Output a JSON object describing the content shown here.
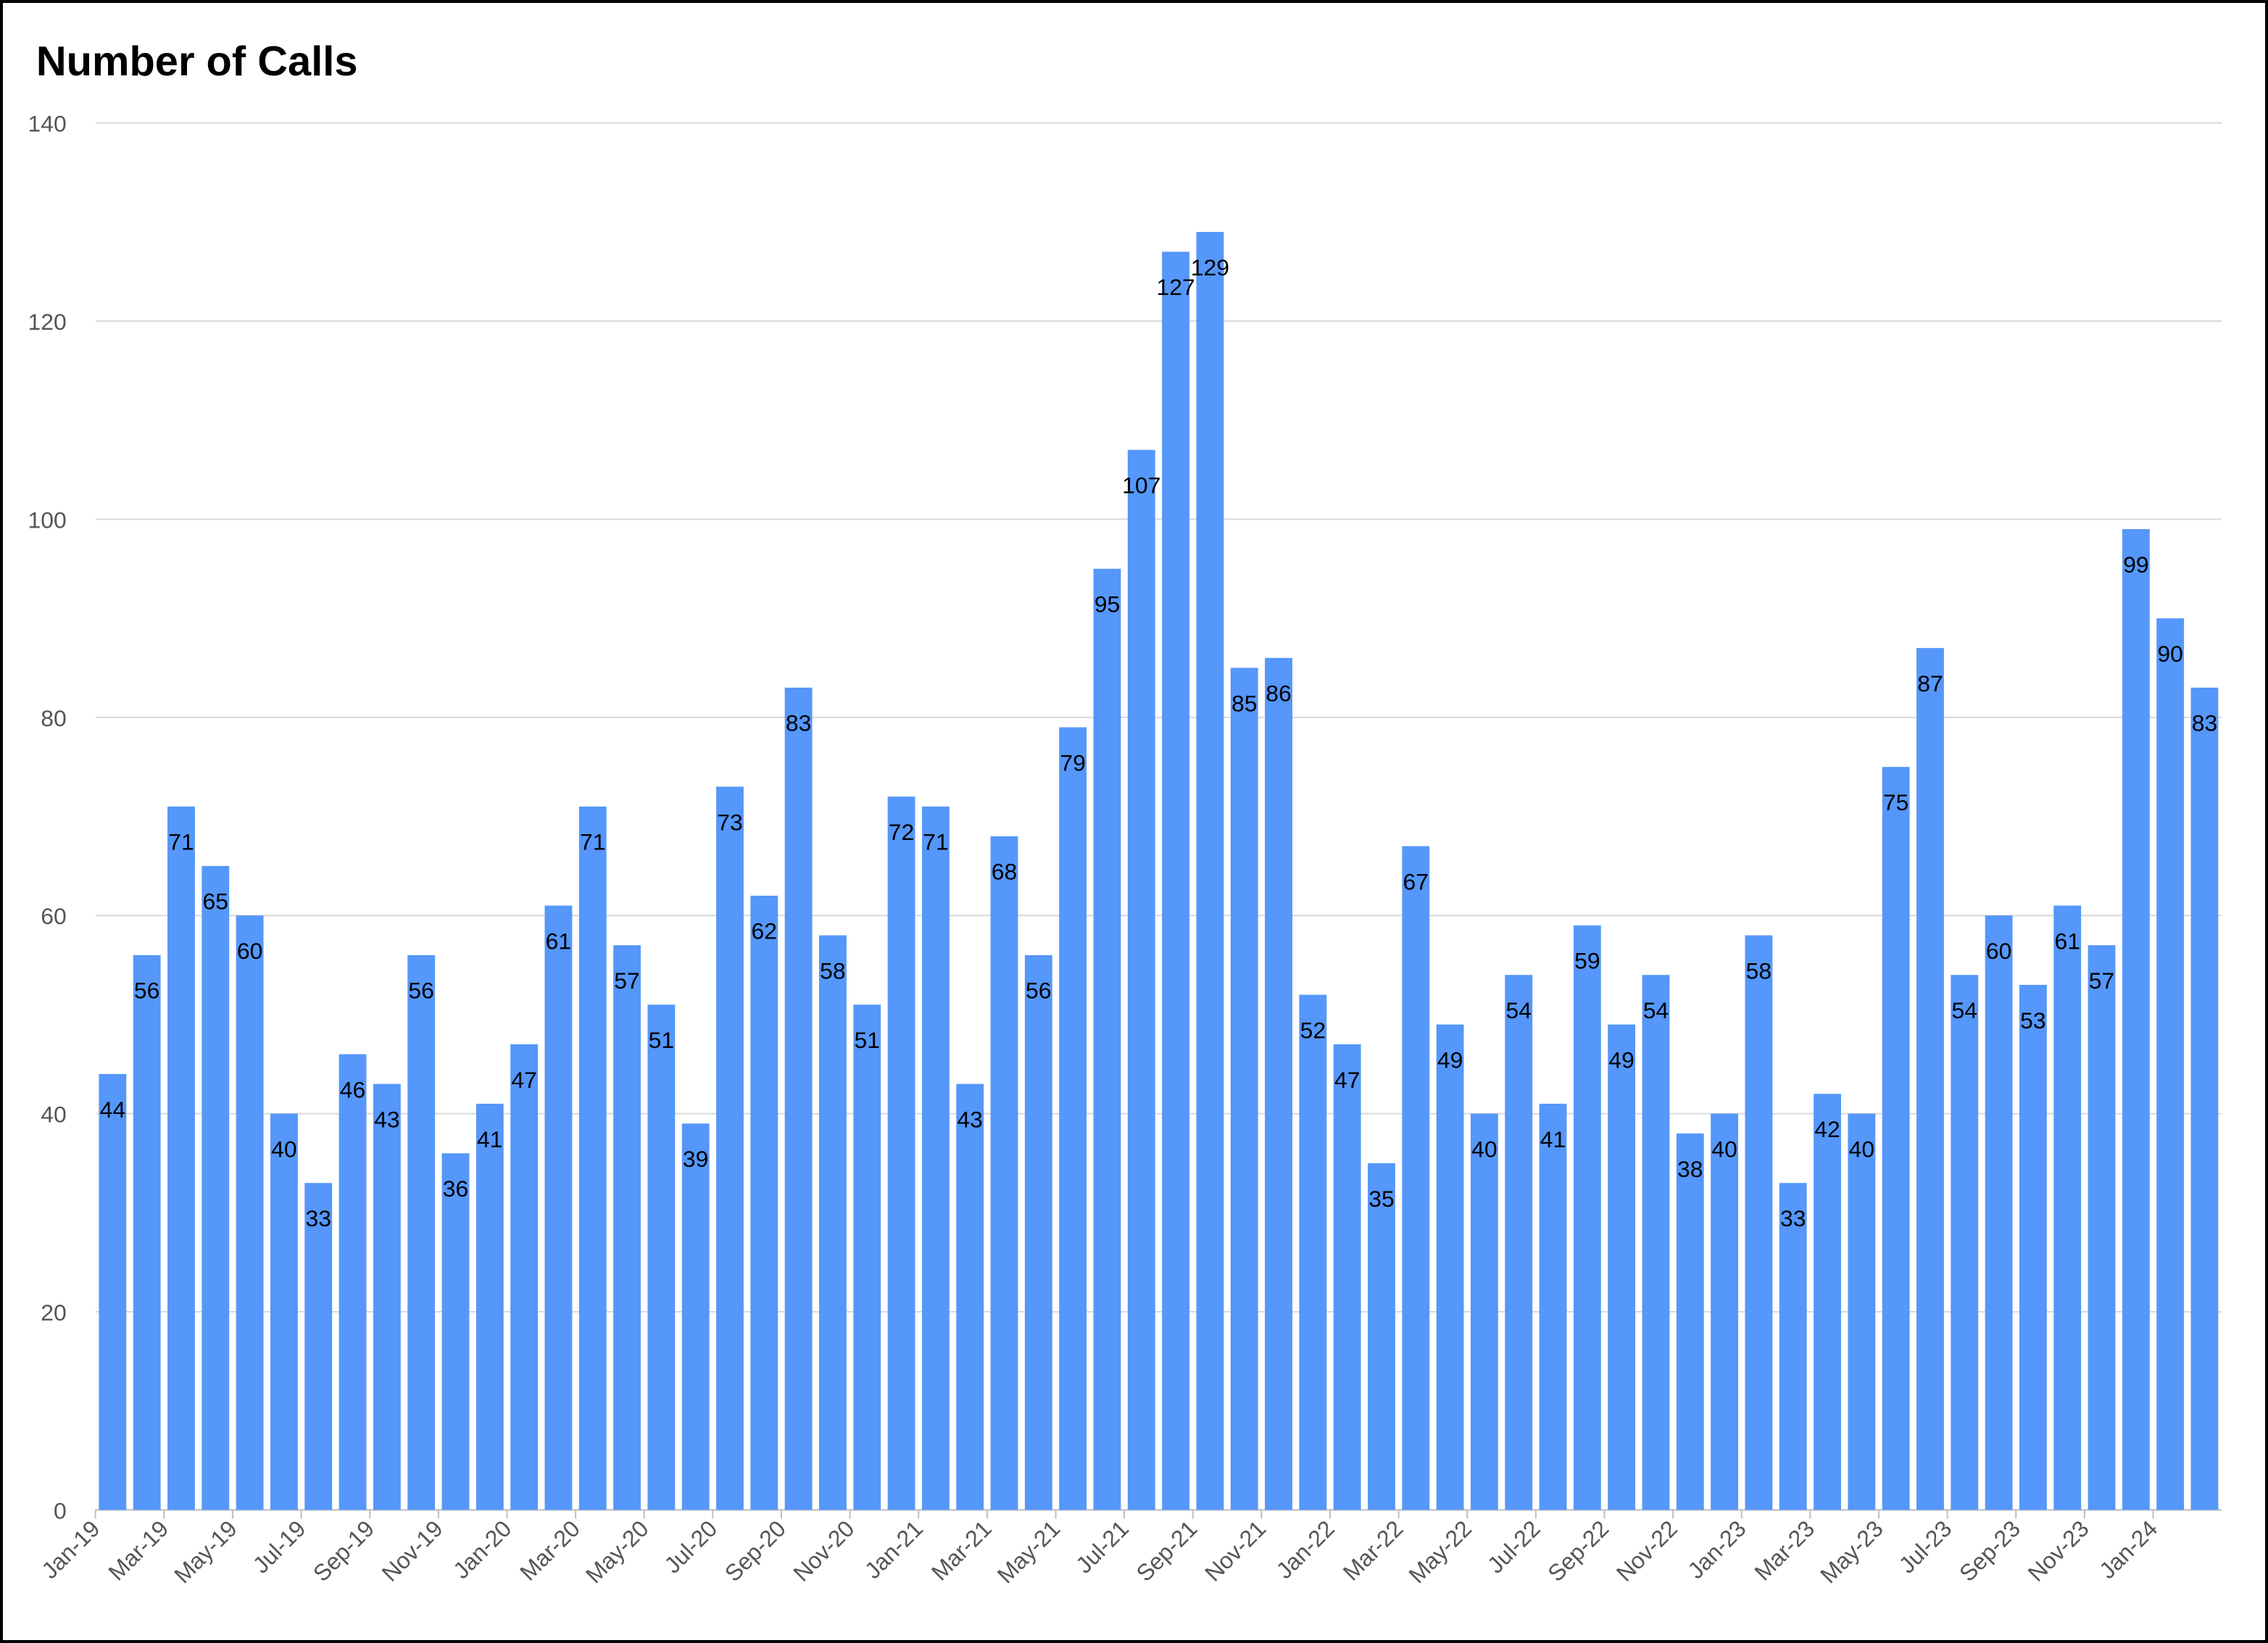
{
  "chart_data": {
    "type": "bar",
    "title": "Number of Calls",
    "categories": [
      "Jan-19",
      null,
      "Mar-19",
      null,
      "May-19",
      null,
      "Jul-19",
      null,
      "Sep-19",
      null,
      "Nov-19",
      null,
      "Jan-20",
      null,
      "Mar-20",
      null,
      "May-20",
      null,
      "Jul-20",
      null,
      "Sep-20",
      null,
      "Nov-20",
      null,
      "Jan-21",
      null,
      "Mar-21",
      null,
      "May-21",
      null,
      "Jul-21",
      null,
      "Sep-21",
      null,
      "Nov-21",
      null,
      "Jan-22",
      null,
      "Mar-22",
      null,
      "May-22",
      null,
      "Jul-22",
      null,
      "Sep-22",
      null,
      "Nov-22",
      null,
      "Jan-23",
      null,
      "Mar-23",
      null,
      "May-23",
      null,
      "Jul-23",
      null,
      "Sep-23",
      null,
      "Nov-23",
      null,
      "Jan-24",
      null
    ],
    "values": [
      44,
      56,
      71,
      65,
      60,
      40,
      33,
      46,
      43,
      56,
      36,
      41,
      47,
      61,
      71,
      57,
      51,
      39,
      73,
      62,
      83,
      58,
      51,
      72,
      71,
      43,
      68,
      56,
      79,
      95,
      107,
      127,
      129,
      85,
      86,
      52,
      47,
      35,
      67,
      49,
      40,
      54,
      41,
      59,
      49,
      54,
      38,
      40,
      58,
      33,
      42,
      40,
      75,
      87,
      54,
      60,
      53,
      61,
      57,
      99,
      90,
      83
    ],
    "color": "#5597fa",
    "ylim": [
      0,
      140
    ],
    "yticks": [
      0,
      20,
      40,
      60,
      80,
      100,
      120,
      140
    ],
    "grid": true
  }
}
